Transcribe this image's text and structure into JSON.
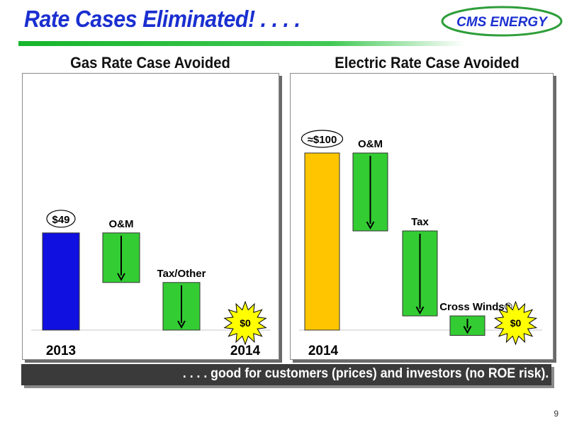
{
  "header": {
    "title": "Rate Cases Eliminated! . . . .",
    "logo_text": "CMS ENERGY"
  },
  "colors": {
    "title": "#1a2fd0",
    "gas_2013_bar": "#1010e0",
    "electric_2014_bar": "#ffc600",
    "reduction_bar": "#33cc33",
    "starburst": "#ffff00"
  },
  "chart_data": [
    {
      "type": "bar",
      "subtype": "waterfall",
      "title": "Gas Rate Case Avoided",
      "unit": "$",
      "categories": [
        "2013",
        "O&M",
        "Tax/Other",
        "2014"
      ],
      "x_labels": [
        "2013",
        "2014"
      ],
      "values": [
        49,
        -25,
        -24,
        0
      ],
      "bar_roles": [
        "total",
        "decrease",
        "decrease",
        "zero"
      ],
      "data_labels": [
        "$49",
        "O&M",
        "Tax/Other",
        "$0"
      ]
    },
    {
      "type": "bar",
      "subtype": "waterfall",
      "title": "Electric Rate Case Avoided",
      "unit": "$",
      "categories": [
        "2014",
        "O&M",
        "Tax",
        "Cross Winds®",
        "2014"
      ],
      "x_labels": [
        "2014"
      ],
      "values": [
        100,
        -44,
        -48,
        -11,
        0
      ],
      "bar_roles": [
        "total",
        "decrease",
        "decrease",
        "decrease",
        "zero"
      ],
      "data_labels": [
        "≈$100",
        "O&M",
        "Tax",
        "Cross Winds®",
        "$0"
      ]
    }
  ],
  "footer": {
    "banner": ". . . . good for customers (prices) and investors (no ROE risk).",
    "page_number": "9"
  }
}
